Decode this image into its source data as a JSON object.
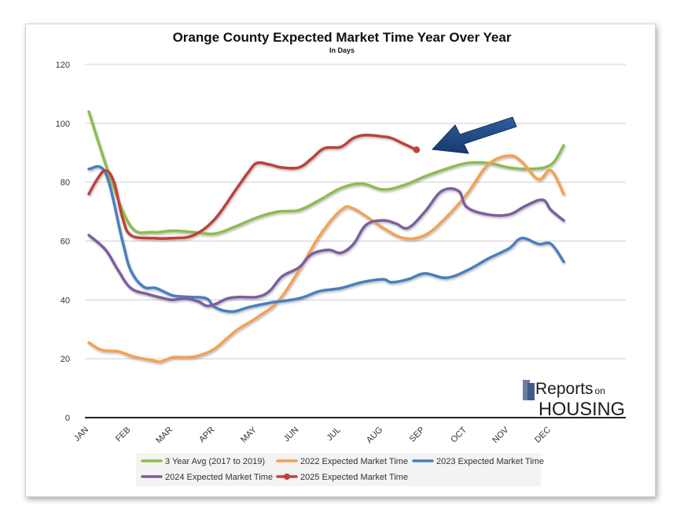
{
  "chart_data": {
    "type": "line",
    "title": "Orange County Expected Market Time Year Over Year",
    "subtitle": "In Days",
    "xlabel": "",
    "ylabel": "",
    "ylim": [
      0,
      120
    ],
    "yticks": [
      0,
      20,
      40,
      60,
      80,
      100,
      120
    ],
    "categories": [
      "JAN",
      "FEB",
      "MAR",
      "APR",
      "MAY",
      "JUN",
      "JUL",
      "AUG",
      "SEP",
      "OCT",
      "NOV",
      "DEC"
    ],
    "grid": true,
    "legend_position": "bottom",
    "series": [
      {
        "name": "3 Year Avg (2017 to 2019)",
        "color": "#8cbd4f",
        "x": [
          0.0,
          0.5,
          1.0,
          1.5,
          2.0,
          2.5,
          3.0,
          3.5,
          4.0,
          4.5,
          5.0,
          5.5,
          6.0,
          6.5,
          7.0,
          7.5,
          8.0,
          8.5,
          9.0,
          9.5,
          10.0,
          10.5,
          11.0,
          11.3
        ],
        "values": [
          104,
          82,
          65,
          63,
          63.5,
          63,
          62.5,
          65,
          68,
          70,
          70.5,
          74,
          78,
          79.5,
          77.5,
          79,
          82,
          84.5,
          86.5,
          86.5,
          85,
          84.5,
          86,
          92.5
        ]
      },
      {
        "name": "2022 Expected Market Time",
        "color": "#f5a052",
        "x": [
          0.0,
          0.3,
          0.7,
          1.0,
          1.3,
          1.5,
          1.7,
          2.0,
          2.3,
          2.6,
          3.0,
          3.5,
          4.0,
          4.5,
          5.0,
          5.5,
          6.0,
          6.3,
          7.0,
          7.5,
          8.0,
          8.5,
          9.0,
          9.5,
          10.0,
          10.3,
          10.7,
          11.0,
          11.3
        ],
        "values": [
          25.5,
          23,
          22.5,
          21,
          20,
          19.5,
          19,
          20.5,
          20.5,
          21,
          23.5,
          29.5,
          34,
          39.5,
          50,
          62,
          70.5,
          71,
          64.5,
          61,
          62,
          68,
          76,
          86,
          89,
          87,
          81,
          84,
          76
        ]
      },
      {
        "name": "2023 Expected Market Time",
        "color": "#4a7fc1",
        "x": [
          0.0,
          0.4,
          0.8,
          1.0,
          1.3,
          1.6,
          2.0,
          2.4,
          2.8,
          3.0,
          3.4,
          3.8,
          4.3,
          5.0,
          5.5,
          6.0,
          6.5,
          7.0,
          7.2,
          7.6,
          8.0,
          8.5,
          9.0,
          9.5,
          10.0,
          10.3,
          10.7,
          11.0,
          11.3
        ],
        "values": [
          84.5,
          83,
          60,
          50,
          44.5,
          44,
          41.5,
          41,
          40.5,
          37.5,
          36,
          37.5,
          39,
          40.5,
          43,
          44,
          46,
          47,
          46,
          47,
          49,
          47.5,
          50,
          54,
          57.5,
          61,
          59,
          59,
          53
        ]
      },
      {
        "name": "2024 Expected Market Time",
        "color": "#7b5fa0",
        "x": [
          0.0,
          0.4,
          0.7,
          1.0,
          1.4,
          1.8,
          2.0,
          2.3,
          2.6,
          2.8,
          3.0,
          3.3,
          3.6,
          4.0,
          4.3,
          4.6,
          5.0,
          5.3,
          5.7,
          6.0,
          6.3,
          6.6,
          7.0,
          7.3,
          7.6,
          8.0,
          8.4,
          8.8,
          9.0,
          9.5,
          10.0,
          10.4,
          10.8,
          11.0,
          11.3
        ],
        "values": [
          62,
          57,
          50,
          44,
          42,
          40.5,
          40,
          40.5,
          39.5,
          38,
          38.5,
          40.5,
          41,
          41,
          43,
          48,
          51,
          55.5,
          57,
          56,
          59,
          65.5,
          67,
          66,
          64.5,
          70,
          77,
          77,
          71.5,
          69,
          69,
          72,
          74,
          70.5,
          67
        ]
      },
      {
        "name": "2025 Expected Market Time",
        "color": "#c0413b",
        "x": [
          0.0,
          0.2,
          0.4,
          0.6,
          0.8,
          1.0,
          1.5,
          2.0,
          2.5,
          3.0,
          3.5,
          3.8,
          4.0,
          4.3,
          4.6,
          5.0,
          5.3,
          5.6,
          6.0,
          6.3,
          6.6,
          7.0,
          7.2,
          7.5,
          7.8
        ],
        "values": [
          76,
          81,
          84,
          80,
          68,
          62,
          61,
          61,
          62,
          67.5,
          77.5,
          83.5,
          86.5,
          86,
          85,
          85,
          88,
          91.5,
          92,
          95,
          96,
          95.5,
          95,
          93,
          91
        ],
        "end_marker": true
      }
    ]
  },
  "annotation": {
    "type": "arrow",
    "color": "#1f4a86",
    "points_to": "2025 Expected Market Time latest value"
  },
  "logo": {
    "line1": "Reports",
    "line1_suffix": "on",
    "line2": "HOUSING"
  }
}
